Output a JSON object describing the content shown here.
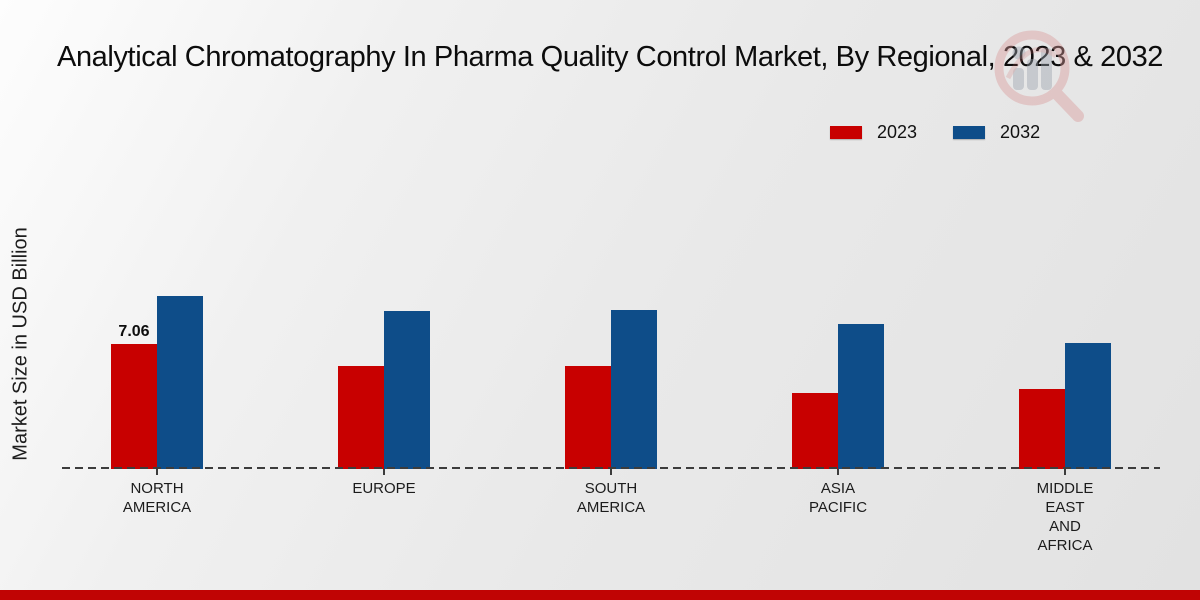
{
  "colors": {
    "series_2023": "#c80000",
    "series_2032": "#0e4d89",
    "footer_bar": "#c00404",
    "baseline": "#3c3c3c"
  },
  "chart_data": {
    "type": "bar",
    "title": "Analytical Chromatography In Pharma Quality Control Market, By Regional, 2023 & 2032",
    "ylabel": "Market Size in USD Billion",
    "xlabel": "",
    "categories": [
      "North America",
      "Europe",
      "South America",
      "Asia Pacific",
      "Middle East and Africa"
    ],
    "category_label_lines": [
      [
        "NORTH",
        "AMERICA"
      ],
      [
        "EUROPE"
      ],
      [
        "SOUTH",
        "AMERICA"
      ],
      [
        "ASIA",
        "PACIFIC"
      ],
      [
        "MIDDLE",
        "EAST",
        "AND",
        "AFRICA"
      ]
    ],
    "series": [
      {
        "name": "2023",
        "color": "#c80000",
        "values": [
          7.06,
          5.8,
          5.8,
          4.3,
          4.5
        ]
      },
      {
        "name": "2032",
        "color": "#0e4d89",
        "values": [
          9.8,
          8.9,
          9.0,
          8.2,
          7.1
        ]
      }
    ],
    "data_labels": [
      {
        "series_index": 0,
        "category_index": 0,
        "text": "7.06"
      }
    ],
    "ylim": [
      0,
      12
    ],
    "grid": false,
    "legend_position": "top-right",
    "baseline_style": "dashed"
  }
}
